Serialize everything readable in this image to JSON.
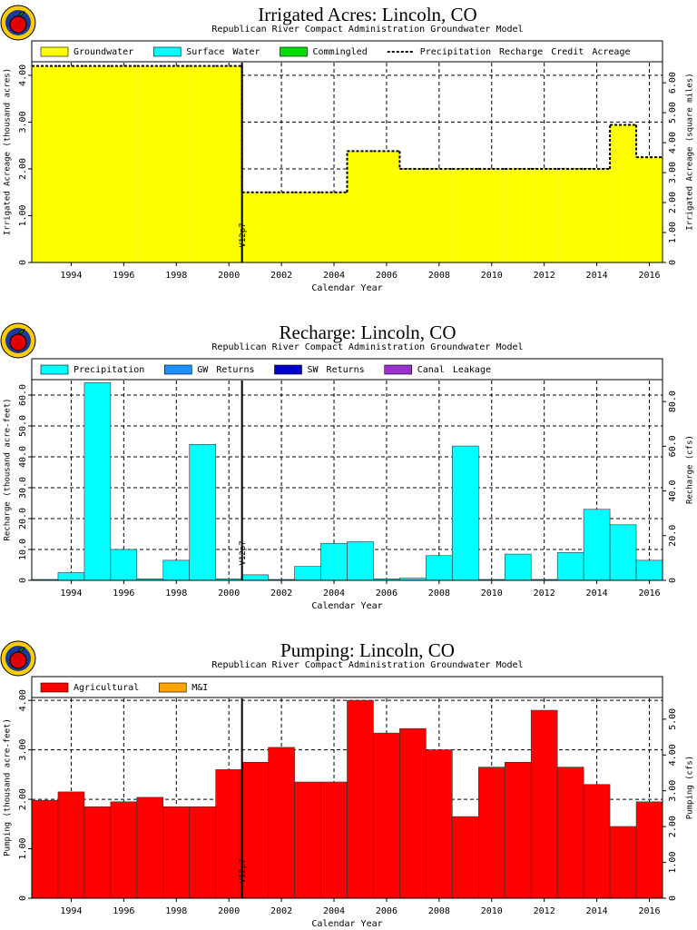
{
  "chart_data": [
    {
      "type": "step",
      "title": "Irrigated Acres: Lincoln, CO",
      "subtitle": "Republican River Compact Administration Groundwater Model",
      "xlabel": "Calendar Year",
      "ylabel": "Irrigated Acreage (thousand acres)",
      "y2label": "Irrigated Acreage (square miles)",
      "annotation": {
        "x": 2000.5,
        "text": "V12p7"
      },
      "x": [
        1993,
        1994,
        1995,
        1996,
        1997,
        1998,
        1999,
        2000,
        2001,
        2002,
        2003,
        2004,
        2005,
        2006,
        2007,
        2008,
        2009,
        2010,
        2011,
        2012,
        2013,
        2014,
        2015,
        2016
      ],
      "xlim": [
        1992.5,
        2016.5
      ],
      "xticks": [
        1994,
        1996,
        1998,
        2000,
        2002,
        2004,
        2006,
        2008,
        2010,
        2012,
        2014,
        2016
      ],
      "ylim": [
        0,
        4.27
      ],
      "yticks": [
        0,
        {
          "value": 1,
          "label": "1.00"
        },
        {
          "value": 2,
          "label": "2.00"
        },
        {
          "value": 3,
          "label": "3.00"
        },
        {
          "value": 4,
          "label": "4.00"
        }
      ],
      "y2lim": [
        0,
        6.67
      ],
      "y2ticks": [
        0,
        {
          "value": 1,
          "label": "1.00"
        },
        {
          "value": 2,
          "label": "2.00"
        },
        {
          "value": 3,
          "label": "3.00"
        },
        {
          "value": 4,
          "label": "4.00"
        },
        {
          "value": 5,
          "label": "5.00"
        },
        {
          "value": 6,
          "label": "6.00"
        }
      ],
      "grid": true,
      "series": [
        {
          "name": "Groundwater",
          "color": "#ffff00",
          "values": [
            4.2,
            4.2,
            4.2,
            4.2,
            4.2,
            4.2,
            4.2,
            4.2,
            1.5,
            1.5,
            1.5,
            1.5,
            2.38,
            2.38,
            2.0,
            2.0,
            2.0,
            2.0,
            2.0,
            2.0,
            2.0,
            2.0,
            2.94,
            2.25
          ]
        },
        {
          "name": "Surface Water",
          "color": "#00ffff",
          "values": [
            0,
            0,
            0,
            0,
            0,
            0,
            0,
            0,
            0,
            0,
            0,
            0,
            0,
            0,
            0,
            0,
            0,
            0,
            0,
            0,
            0,
            0,
            0,
            0
          ]
        },
        {
          "name": "Commingled",
          "color": "#00dd00",
          "values": [
            0,
            0,
            0,
            0,
            0,
            0,
            0,
            0,
            0,
            0,
            0,
            0,
            0,
            0,
            0,
            0,
            0,
            0,
            0,
            0,
            0,
            0,
            0,
            0
          ]
        },
        {
          "name": "Precipitation Recharge Credit Acreage",
          "color": "#000000",
          "style": "dashed",
          "values": [
            4.2,
            4.2,
            4.2,
            4.2,
            4.2,
            4.2,
            4.2,
            4.2,
            1.5,
            1.5,
            1.5,
            1.5,
            2.38,
            2.38,
            2.0,
            2.0,
            2.0,
            2.0,
            2.0,
            2.0,
            2.0,
            2.0,
            2.94,
            2.25
          ]
        }
      ]
    },
    {
      "type": "bar",
      "title": "Recharge: Lincoln, CO",
      "subtitle": "Republican River Compact Administration Groundwater Model",
      "xlabel": "Calendar Year",
      "ylabel": "Recharge (thousand acre-feet)",
      "y2label": "Recharge (cfs)",
      "annotation": {
        "x": 2000.5,
        "text": "V12p7"
      },
      "x": [
        1993,
        1994,
        1995,
        1996,
        1997,
        1998,
        1999,
        2000,
        2001,
        2002,
        2003,
        2004,
        2005,
        2006,
        2007,
        2008,
        2009,
        2010,
        2011,
        2012,
        2013,
        2014,
        2015,
        2016
      ],
      "xlim": [
        1992.5,
        2016.5
      ],
      "xticks": [
        1994,
        1996,
        1998,
        2000,
        2002,
        2004,
        2006,
        2008,
        2010,
        2012,
        2014,
        2016
      ],
      "ylim": [
        0,
        64.7
      ],
      "yticks": [
        0,
        {
          "value": 10,
          "label": "10.0"
        },
        {
          "value": 20,
          "label": "20.0"
        },
        {
          "value": 30,
          "label": "30.0"
        },
        {
          "value": 40,
          "label": "40.0"
        },
        {
          "value": 50,
          "label": "50.0"
        },
        {
          "value": 60,
          "label": "60.0"
        }
      ],
      "y2lim": [
        0,
        89.4
      ],
      "y2ticks": [
        0,
        {
          "value": 20,
          "label": "20.0"
        },
        {
          "value": 40,
          "label": "40.0"
        },
        {
          "value": 60,
          "label": "60.0"
        },
        {
          "value": 80,
          "label": "80.0"
        }
      ],
      "grid": true,
      "series": [
        {
          "name": "Precipitation",
          "color": "#00ffff",
          "values": [
            0.3,
            2.5,
            64,
            10,
            0.5,
            6.5,
            44,
            0.5,
            1.8,
            0.3,
            4.5,
            12,
            12.5,
            0.5,
            0.7,
            8,
            43.5,
            0.3,
            8.5,
            0.3,
            9,
            23,
            18,
            6.5
          ]
        },
        {
          "name": "GW Returns",
          "color": "#1e90ff",
          "values": [
            0,
            0,
            0,
            0,
            0,
            0,
            0,
            0,
            0,
            0,
            0,
            0,
            0,
            0,
            0,
            0,
            0,
            0,
            0,
            0,
            0,
            0,
            0,
            0
          ]
        },
        {
          "name": "SW Returns",
          "color": "#0000cd",
          "values": [
            0,
            0,
            0,
            0,
            0,
            0,
            0,
            0,
            0,
            0,
            0,
            0,
            0,
            0,
            0,
            0,
            0,
            0,
            0,
            0,
            0,
            0,
            0,
            0
          ]
        },
        {
          "name": "Canal Leakage",
          "color": "#9932cc",
          "values": [
            0,
            0,
            0,
            0,
            0,
            0,
            0,
            0,
            0,
            0,
            0,
            0,
            0,
            0,
            0,
            0,
            0,
            0,
            0,
            0,
            0,
            0,
            0,
            0
          ]
        }
      ]
    },
    {
      "type": "bar",
      "title": "Pumping: Lincoln, CO",
      "subtitle": "Republican River Compact Administration Groundwater Model",
      "xlabel": "Calendar Year",
      "ylabel": "Pumping (thousand acre-feet)",
      "y2label": "Pumping (cfs)",
      "annotation": {
        "x": 2000.5,
        "text": "V12p7"
      },
      "x": [
        1993,
        1994,
        1995,
        1996,
        1997,
        1998,
        1999,
        2000,
        2001,
        2002,
        2003,
        2004,
        2005,
        2006,
        2007,
        2008,
        2009,
        2010,
        2011,
        2012,
        2013,
        2014,
        2015,
        2016
      ],
      "xlim": [
        1992.5,
        2016.5
      ],
      "xticks": [
        1994,
        1996,
        1998,
        2000,
        2002,
        2004,
        2006,
        2008,
        2010,
        2012,
        2014,
        2016
      ],
      "ylim": [
        0,
        4.04
      ],
      "yticks": [
        0,
        {
          "value": 1,
          "label": "1.00"
        },
        {
          "value": 2,
          "label": "2.00"
        },
        {
          "value": 3,
          "label": "3.00"
        },
        {
          "value": 4,
          "label": "4.00"
        }
      ],
      "y2lim": [
        0,
        5.58
      ],
      "y2ticks": [
        0,
        {
          "value": 1,
          "label": "1.00"
        },
        {
          "value": 2,
          "label": "2.00"
        },
        {
          "value": 3,
          "label": "3.00"
        },
        {
          "value": 4,
          "label": "4.00"
        },
        {
          "value": 5,
          "label": "5.00"
        }
      ],
      "grid": true,
      "series": [
        {
          "name": "Agricultural",
          "color": "#ff0000",
          "values": [
            1.98,
            2.15,
            1.85,
            1.95,
            2.04,
            1.85,
            1.85,
            2.6,
            2.75,
            3.05,
            2.35,
            2.35,
            4.0,
            3.34,
            3.43,
            3.0,
            1.65,
            2.65,
            2.75,
            3.8,
            2.65,
            2.3,
            1.45,
            1.95
          ]
        },
        {
          "name": "M&I",
          "color": "#ffa500",
          "values": [
            0,
            0,
            0,
            0,
            0,
            0,
            0,
            0,
            0,
            0,
            0,
            0,
            0,
            0,
            0,
            0,
            0,
            0,
            0,
            0,
            0,
            0,
            0,
            0
          ]
        }
      ]
    }
  ]
}
